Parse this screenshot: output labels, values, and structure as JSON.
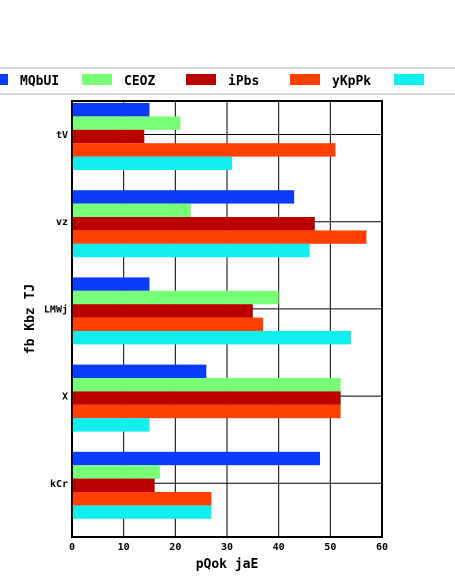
{
  "chart_data": {
    "type": "bar",
    "orientation": "horizontal",
    "categories": [
      "tV",
      "vz",
      "LMWj",
      "X",
      "kCr"
    ],
    "series": [
      {
        "name": "MQbUI",
        "color": "#0a3cff",
        "values": [
          15,
          43,
          15,
          26,
          48
        ]
      },
      {
        "name": "CEOZ",
        "color": "#77ff77",
        "values": [
          21,
          23,
          40,
          52,
          17
        ]
      },
      {
        "name": "iPbs",
        "color": "#bb0000",
        "values": [
          14,
          47,
          35,
          52,
          16
        ]
      },
      {
        "name": "yKpPk",
        "color": "#ff4000",
        "values": [
          51,
          57,
          37,
          52,
          27
        ]
      },
      {
        "name": "",
        "color": "#11eeee",
        "values": [
          31,
          46,
          54,
          15,
          27
        ]
      }
    ],
    "xlabel": "pQok jaE",
    "ylabel": "fb Kbz TJ",
    "xlim": [
      0,
      60
    ],
    "xticks": [
      "0",
      "10",
      "20",
      "30",
      "40",
      "50",
      "60"
    ],
    "grid": true,
    "legend_position": "top"
  }
}
